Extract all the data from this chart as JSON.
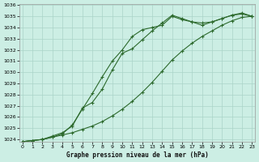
{
  "title": "Graphe pression niveau de la mer (hPa)",
  "bg_color": "#cceee4",
  "line_color": "#2d6a2d",
  "grid_color": "#aad4c8",
  "ylim_min": 1024,
  "ylim_max": 1036,
  "xlim_min": 0,
  "xlim_max": 23,
  "yticks": [
    1024,
    1025,
    1026,
    1027,
    1028,
    1029,
    1030,
    1031,
    1032,
    1033,
    1034,
    1035,
    1036
  ],
  "xticks": [
    0,
    1,
    2,
    3,
    4,
    5,
    6,
    7,
    8,
    9,
    10,
    11,
    12,
    13,
    14,
    15,
    16,
    17,
    18,
    19,
    20,
    21,
    22,
    23
  ],
  "series": [
    {
      "x": [
        0,
        1,
        2,
        3,
        4,
        5,
        6,
        7,
        8,
        9,
        10,
        11,
        12,
        13,
        14,
        15,
        16,
        17,
        18,
        19,
        20,
        21,
        22,
        23
      ],
      "y": [
        1023.8,
        1023.9,
        1024.0,
        1024.2,
        1024.5,
        1025.3,
        1026.7,
        1028.1,
        1029.6,
        1031.0,
        1032.0,
        1033.2,
        1033.8,
        1034.0,
        1034.2,
        1035.0,
        1034.7,
        1034.5,
        1034.4,
        1034.5,
        1034.8,
        1035.1,
        1035.2,
        1035.0
      ],
      "style": "-",
      "marker": "+"
    },
    {
      "x": [
        0,
        1,
        2,
        3,
        4,
        5,
        6,
        7,
        8,
        9,
        10,
        11,
        12,
        13,
        14,
        15,
        16,
        17,
        18,
        19,
        20,
        21,
        22,
        23
      ],
      "y": [
        1023.8,
        1023.9,
        1024.0,
        1024.3,
        1024.6,
        1025.2,
        1026.8,
        1027.3,
        1028.5,
        1030.2,
        1031.7,
        1032.1,
        1032.9,
        1033.7,
        1034.4,
        1035.1,
        1034.8,
        1034.5,
        1034.2,
        1034.5,
        1034.8,
        1035.1,
        1035.3,
        1035.0
      ],
      "style": "-",
      "marker": "+"
    },
    {
      "x": [
        0,
        1,
        2,
        3,
        4,
        5,
        6,
        7,
        8,
        9,
        10,
        11,
        12,
        13,
        14,
        15,
        16,
        17,
        18,
        19,
        20,
        21,
        22,
        23
      ],
      "y": [
        1023.8,
        1023.9,
        1024.0,
        1024.2,
        1024.4,
        1024.6,
        1024.9,
        1025.2,
        1025.6,
        1026.1,
        1026.7,
        1027.4,
        1028.2,
        1029.1,
        1030.1,
        1031.1,
        1031.9,
        1032.6,
        1033.2,
        1033.7,
        1034.2,
        1034.6,
        1034.9,
        1035.0
      ],
      "style": "-",
      "marker": "+"
    }
  ]
}
